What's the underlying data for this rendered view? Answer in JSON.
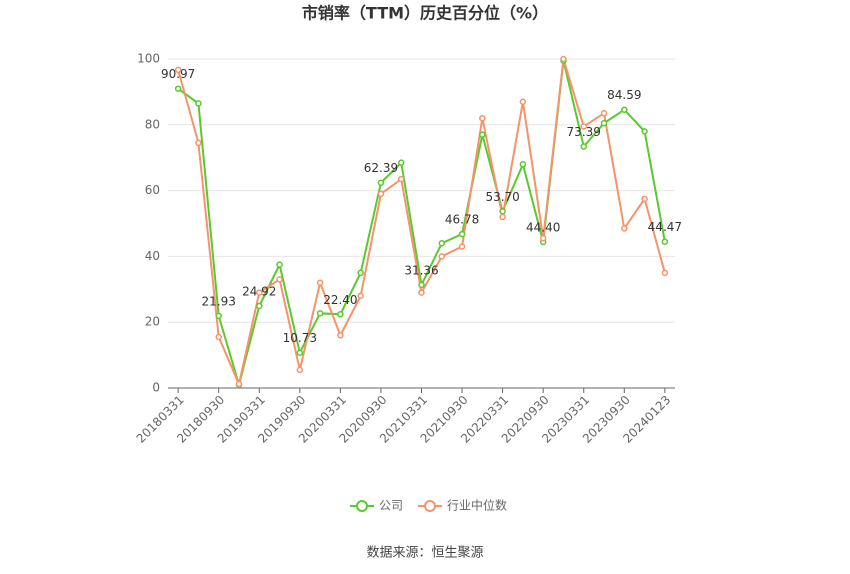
{
  "chart_data": {
    "type": "line",
    "title": "市销率（TTM）历史百分位（%）",
    "categories": [
      "20180331",
      null,
      "20180930",
      null,
      "20190331",
      null,
      "20190930",
      null,
      "20200331",
      null,
      "20200930",
      null,
      "20210331",
      null,
      "20210930",
      null,
      "20220331",
      null,
      "20220930",
      null,
      "20230331",
      null,
      "20230930",
      null,
      "20240123"
    ],
    "series": [
      {
        "name": "公司",
        "color": "#5ac92e",
        "values": [
          90.97,
          86.5,
          21.93,
          1,
          24.92,
          37.5,
          10.73,
          22.7,
          22.4,
          35,
          62.39,
          68.5,
          31.36,
          44,
          46.78,
          77,
          53.7,
          68,
          44.4,
          99.5,
          73.39,
          80.5,
          84.59,
          78,
          44.47
        ],
        "value_labels": [
          "90.97",
          null,
          "21.93",
          null,
          "24.92",
          null,
          "10.73",
          null,
          "22.40",
          null,
          "62.39",
          null,
          "31.36",
          null,
          "46.78",
          null,
          "53.70",
          null,
          "44.40",
          null,
          "73.39",
          null,
          "84.59",
          null,
          "44.47"
        ]
      },
      {
        "name": "行业中位数",
        "color": "#f5936a",
        "values": [
          96.7,
          74.5,
          15.5,
          1.2,
          29,
          33,
          5.5,
          32,
          16,
          28,
          59,
          63.5,
          29,
          40,
          43,
          82,
          52,
          87,
          45.5,
          100,
          79.5,
          83.5,
          48.5,
          57.5,
          35
        ]
      }
    ],
    "ylim": [
      0,
      100
    ],
    "yticks": [
      0,
      20,
      40,
      60,
      80,
      100
    ],
    "grid": true,
    "legend": "bottom",
    "source": "数据来源：恒生聚源"
  }
}
